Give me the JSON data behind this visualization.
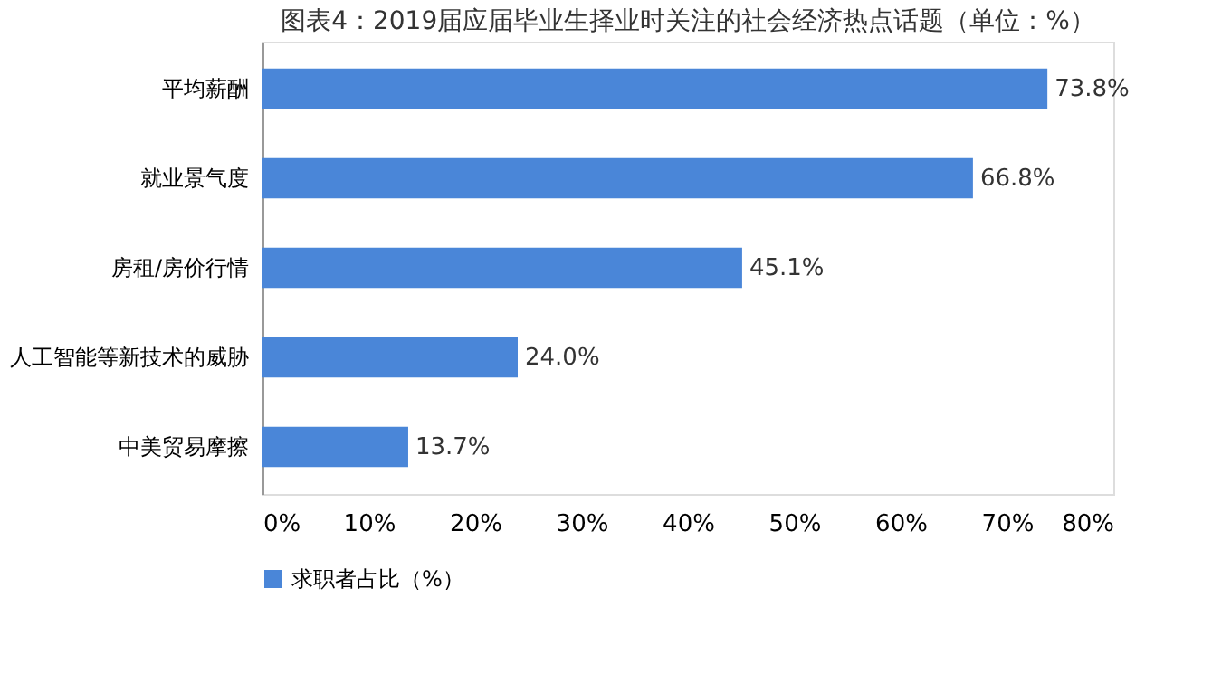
{
  "chart_data": {
    "type": "bar",
    "orientation": "horizontal",
    "title": "图表4：2019届应届毕业生择业时关注的社会经济热点话题（单位：%）",
    "categories": [
      "平均薪酬",
      "就业景气度",
      "房租/房价行情",
      "人工智能等新技术的威胁",
      "中美贸易摩擦"
    ],
    "series": [
      {
        "name": "求职者占比（%）",
        "color": "#4a86d8",
        "values": [
          73.8,
          66.8,
          45.1,
          24.0,
          13.7
        ]
      }
    ],
    "value_labels": [
      "73.8%",
      "66.8%",
      "45.1%",
      "24.0%",
      "13.7%"
    ],
    "xlim": [
      0,
      80
    ],
    "xticks": [
      {
        "value": 0,
        "label": "0%"
      },
      {
        "value": 10,
        "label": "10%"
      },
      {
        "value": 20,
        "label": "20%"
      },
      {
        "value": 30,
        "label": "30%"
      },
      {
        "value": 40,
        "label": "40%"
      },
      {
        "value": 50,
        "label": "50%"
      },
      {
        "value": 60,
        "label": "60%"
      },
      {
        "value": 70,
        "label": "70%"
      },
      {
        "value": 80,
        "label": "80%"
      }
    ],
    "grid": false,
    "legend": "bottom"
  }
}
